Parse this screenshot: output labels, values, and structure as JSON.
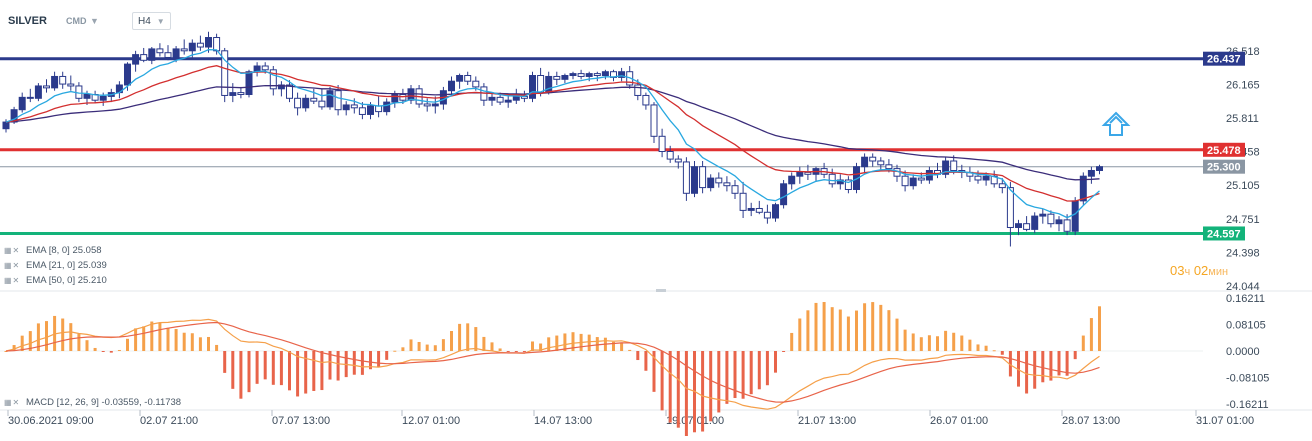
{
  "header": {
    "symbol": "SILVER",
    "exchange": "CMD",
    "caret": "▼",
    "timeframe": "H4",
    "timeframe_caret": "▼"
  },
  "indicators": {
    "ema8": "EMA [8, 0] 25.058",
    "ema21": "EMA [21, 0] 25.039",
    "ema50": "EMA [50, 0] 25.210",
    "macd": "MACD [12, 26, 9] -0.03559, -0.11738"
  },
  "timer": {
    "hours": "03",
    "hours_unit": "ч",
    "minutes": "02",
    "minutes_unit": "мин"
  },
  "colors": {
    "candle_up": "#2b3a8c",
    "candle_down": "#ffffff",
    "ema8": "#29a8e0",
    "ema21": "#d32f2f",
    "ema50": "#3b2d7a",
    "resistance_high": "#2b3a8c",
    "resistance_mid": "#e03131",
    "support": "#13b37a",
    "current_price": "#8a96a3",
    "macd_hist_up": "#f5a04a",
    "macd_hist_down": "#e8644a",
    "macd_line": "#f5a04a",
    "signal_line": "#e8644a",
    "arrow": "#3ba7e8"
  },
  "chart_data": {
    "type": "candlestick",
    "symbol": "SILVER",
    "timeframe": "H4",
    "price_axis": {
      "ticks": [
        "26.518",
        "26.165",
        "25.811",
        "25.458",
        "25.105",
        "24.751",
        "24.398",
        "24.044"
      ],
      "range": [
        24.044,
        26.518
      ]
    },
    "x_axis": {
      "ticks": [
        "30.06.2021  09:00",
        "02.07  21:00",
        "07.07  13:00",
        "12.07  01:00",
        "14.07  13:00",
        "19.07  01:00",
        "21.07  13:00",
        "26.07  01:00",
        "28.07  13:00",
        "31.07  01:00"
      ]
    },
    "levels": [
      {
        "name": "resistance-high",
        "value": 26.437,
        "label": "26.437",
        "color": "#2b3a8c"
      },
      {
        "name": "resistance-mid",
        "value": 25.478,
        "label": "25.478",
        "color": "#e03131"
      },
      {
        "name": "current-price",
        "value": 25.3,
        "label": "25.300",
        "color": "#8a96a3"
      },
      {
        "name": "support",
        "value": 24.597,
        "label": "24.597",
        "color": "#13b37a"
      }
    ],
    "candles": [
      {
        "o": 25.7,
        "h": 25.8,
        "l": 25.66,
        "c": 25.77
      },
      {
        "o": 25.77,
        "h": 25.93,
        "l": 25.75,
        "c": 25.9
      },
      {
        "o": 25.9,
        "h": 26.08,
        "l": 25.87,
        "c": 26.03
      },
      {
        "o": 26.03,
        "h": 26.12,
        "l": 25.98,
        "c": 26.02
      },
      {
        "o": 26.02,
        "h": 26.18,
        "l": 25.99,
        "c": 26.15
      },
      {
        "o": 26.15,
        "h": 26.22,
        "l": 26.08,
        "c": 26.13
      },
      {
        "o": 26.13,
        "h": 26.3,
        "l": 26.1,
        "c": 26.25
      },
      {
        "o": 26.25,
        "h": 26.3,
        "l": 26.12,
        "c": 26.17
      },
      {
        "o": 26.17,
        "h": 26.26,
        "l": 26.1,
        "c": 26.15
      },
      {
        "o": 26.15,
        "h": 26.19,
        "l": 25.98,
        "c": 26.02
      },
      {
        "o": 26.02,
        "h": 26.1,
        "l": 25.95,
        "c": 26.06
      },
      {
        "o": 26.06,
        "h": 26.1,
        "l": 25.97,
        "c": 26.0
      },
      {
        "o": 26.0,
        "h": 26.08,
        "l": 25.94,
        "c": 26.04
      },
      {
        "o": 26.04,
        "h": 26.12,
        "l": 25.98,
        "c": 26.08
      },
      {
        "o": 26.08,
        "h": 26.2,
        "l": 26.02,
        "c": 26.16
      },
      {
        "o": 26.16,
        "h": 26.4,
        "l": 26.1,
        "c": 26.38
      },
      {
        "o": 26.38,
        "h": 26.52,
        "l": 26.3,
        "c": 26.48
      },
      {
        "o": 26.48,
        "h": 26.55,
        "l": 26.4,
        "c": 26.42
      },
      {
        "o": 26.42,
        "h": 26.56,
        "l": 26.38,
        "c": 26.54
      },
      {
        "o": 26.54,
        "h": 26.6,
        "l": 26.46,
        "c": 26.5
      },
      {
        "o": 26.5,
        "h": 26.58,
        "l": 26.42,
        "c": 26.45
      },
      {
        "o": 26.45,
        "h": 26.57,
        "l": 26.4,
        "c": 26.54
      },
      {
        "o": 26.54,
        "h": 26.64,
        "l": 26.48,
        "c": 26.52
      },
      {
        "o": 26.52,
        "h": 26.64,
        "l": 26.45,
        "c": 26.6
      },
      {
        "o": 26.6,
        "h": 26.68,
        "l": 26.52,
        "c": 26.56
      },
      {
        "o": 26.56,
        "h": 26.72,
        "l": 26.5,
        "c": 26.66
      },
      {
        "o": 26.66,
        "h": 26.7,
        "l": 26.48,
        "c": 26.52
      },
      {
        "o": 26.52,
        "h": 26.55,
        "l": 25.98,
        "c": 26.05
      },
      {
        "o": 26.05,
        "h": 26.18,
        "l": 25.98,
        "c": 26.08
      },
      {
        "o": 26.08,
        "h": 26.14,
        "l": 26.02,
        "c": 26.06
      },
      {
        "o": 26.06,
        "h": 26.32,
        "l": 26.03,
        "c": 26.3
      },
      {
        "o": 26.3,
        "h": 26.4,
        "l": 26.25,
        "c": 26.36
      },
      {
        "o": 26.36,
        "h": 26.4,
        "l": 26.28,
        "c": 26.32
      },
      {
        "o": 26.32,
        "h": 26.36,
        "l": 26.05,
        "c": 26.12
      },
      {
        "o": 26.12,
        "h": 26.2,
        "l": 26.04,
        "c": 26.16
      },
      {
        "o": 26.16,
        "h": 26.21,
        "l": 25.98,
        "c": 26.02
      },
      {
        "o": 26.02,
        "h": 26.08,
        "l": 25.84,
        "c": 25.92
      },
      {
        "o": 25.92,
        "h": 26.06,
        "l": 25.88,
        "c": 26.02
      },
      {
        "o": 26.02,
        "h": 26.12,
        "l": 25.96,
        "c": 25.99
      },
      {
        "o": 25.99,
        "h": 26.12,
        "l": 25.9,
        "c": 25.93
      },
      {
        "o": 25.93,
        "h": 26.14,
        "l": 25.9,
        "c": 26.1
      },
      {
        "o": 26.1,
        "h": 26.16,
        "l": 25.84,
        "c": 25.9
      },
      {
        "o": 25.9,
        "h": 25.99,
        "l": 25.84,
        "c": 25.95
      },
      {
        "o": 25.95,
        "h": 26.02,
        "l": 25.86,
        "c": 25.92
      },
      {
        "o": 25.92,
        "h": 25.98,
        "l": 25.8,
        "c": 25.85
      },
      {
        "o": 25.85,
        "h": 25.98,
        "l": 25.8,
        "c": 25.94
      },
      {
        "o": 25.94,
        "h": 26.04,
        "l": 25.82,
        "c": 25.88
      },
      {
        "o": 25.88,
        "h": 26.02,
        "l": 25.84,
        "c": 25.98
      },
      {
        "o": 25.98,
        "h": 26.1,
        "l": 25.92,
        "c": 26.06
      },
      {
        "o": 26.06,
        "h": 26.12,
        "l": 25.96,
        "c": 26.0
      },
      {
        "o": 26.0,
        "h": 26.16,
        "l": 25.96,
        "c": 26.12
      },
      {
        "o": 26.12,
        "h": 26.16,
        "l": 25.92,
        "c": 25.96
      },
      {
        "o": 25.96,
        "h": 26.02,
        "l": 25.88,
        "c": 25.94
      },
      {
        "o": 25.94,
        "h": 26.04,
        "l": 25.86,
        "c": 25.96
      },
      {
        "o": 25.96,
        "h": 26.14,
        "l": 25.9,
        "c": 26.1
      },
      {
        "o": 26.1,
        "h": 26.25,
        "l": 26.05,
        "c": 26.2
      },
      {
        "o": 26.2,
        "h": 26.28,
        "l": 26.12,
        "c": 26.26
      },
      {
        "o": 26.26,
        "h": 26.3,
        "l": 26.16,
        "c": 26.2
      },
      {
        "o": 26.2,
        "h": 26.25,
        "l": 26.1,
        "c": 26.14
      },
      {
        "o": 26.14,
        "h": 26.18,
        "l": 25.94,
        "c": 26.0
      },
      {
        "o": 26.0,
        "h": 26.08,
        "l": 25.94,
        "c": 26.03
      },
      {
        "o": 26.03,
        "h": 26.08,
        "l": 25.95,
        "c": 25.98
      },
      {
        "o": 25.98,
        "h": 26.04,
        "l": 25.92,
        "c": 26.0
      },
      {
        "o": 26.0,
        "h": 26.12,
        "l": 25.96,
        "c": 26.04
      },
      {
        "o": 26.04,
        "h": 26.1,
        "l": 25.98,
        "c": 26.02
      },
      {
        "o": 26.02,
        "h": 26.3,
        "l": 25.98,
        "c": 26.26
      },
      {
        "o": 26.26,
        "h": 26.34,
        "l": 26.04,
        "c": 26.08
      },
      {
        "o": 26.08,
        "h": 26.3,
        "l": 26.06,
        "c": 26.25
      },
      {
        "o": 26.25,
        "h": 26.3,
        "l": 26.16,
        "c": 26.22
      },
      {
        "o": 26.22,
        "h": 26.28,
        "l": 26.18,
        "c": 26.26
      },
      {
        "o": 26.26,
        "h": 26.3,
        "l": 26.22,
        "c": 26.28
      },
      {
        "o": 26.28,
        "h": 26.32,
        "l": 26.22,
        "c": 26.25
      },
      {
        "o": 26.25,
        "h": 26.3,
        "l": 26.2,
        "c": 26.28
      },
      {
        "o": 26.28,
        "h": 26.3,
        "l": 26.2,
        "c": 26.26
      },
      {
        "o": 26.26,
        "h": 26.32,
        "l": 26.22,
        "c": 26.3
      },
      {
        "o": 26.3,
        "h": 26.32,
        "l": 26.2,
        "c": 26.24
      },
      {
        "o": 26.24,
        "h": 26.34,
        "l": 26.2,
        "c": 26.3
      },
      {
        "o": 26.3,
        "h": 26.36,
        "l": 26.12,
        "c": 26.16
      },
      {
        "o": 26.16,
        "h": 26.22,
        "l": 26.0,
        "c": 26.05
      },
      {
        "o": 26.05,
        "h": 26.08,
        "l": 25.9,
        "c": 25.95
      },
      {
        "o": 25.95,
        "h": 25.98,
        "l": 25.55,
        "c": 25.62
      },
      {
        "o": 25.62,
        "h": 25.7,
        "l": 25.4,
        "c": 25.46
      },
      {
        "o": 25.46,
        "h": 25.52,
        "l": 25.34,
        "c": 25.38
      },
      {
        "o": 25.38,
        "h": 25.42,
        "l": 25.28,
        "c": 25.35
      },
      {
        "o": 25.35,
        "h": 25.4,
        "l": 24.94,
        "c": 25.02
      },
      {
        "o": 25.02,
        "h": 25.36,
        "l": 24.98,
        "c": 25.3
      },
      {
        "o": 25.3,
        "h": 25.36,
        "l": 25.02,
        "c": 25.08
      },
      {
        "o": 25.08,
        "h": 25.22,
        "l": 25.04,
        "c": 25.18
      },
      {
        "o": 25.18,
        "h": 25.24,
        "l": 25.08,
        "c": 25.13
      },
      {
        "o": 25.13,
        "h": 25.2,
        "l": 25.04,
        "c": 25.1
      },
      {
        "o": 25.1,
        "h": 25.16,
        "l": 24.96,
        "c": 25.02
      },
      {
        "o": 25.02,
        "h": 25.14,
        "l": 24.76,
        "c": 24.84
      },
      {
        "o": 24.84,
        "h": 24.92,
        "l": 24.78,
        "c": 24.86
      },
      {
        "o": 24.86,
        "h": 24.94,
        "l": 24.8,
        "c": 24.82
      },
      {
        "o": 24.82,
        "h": 24.9,
        "l": 24.7,
        "c": 24.76
      },
      {
        "o": 24.76,
        "h": 24.92,
        "l": 24.72,
        "c": 24.9
      },
      {
        "o": 24.9,
        "h": 25.16,
        "l": 24.86,
        "c": 25.12
      },
      {
        "o": 25.12,
        "h": 25.24,
        "l": 25.06,
        "c": 25.2
      },
      {
        "o": 25.2,
        "h": 25.3,
        "l": 25.12,
        "c": 25.24
      },
      {
        "o": 25.24,
        "h": 25.32,
        "l": 25.16,
        "c": 25.22
      },
      {
        "o": 25.22,
        "h": 25.3,
        "l": 25.14,
        "c": 25.28
      },
      {
        "o": 25.28,
        "h": 25.34,
        "l": 25.18,
        "c": 25.22
      },
      {
        "o": 25.22,
        "h": 25.28,
        "l": 25.08,
        "c": 25.12
      },
      {
        "o": 25.12,
        "h": 25.22,
        "l": 25.06,
        "c": 25.16
      },
      {
        "o": 25.16,
        "h": 25.2,
        "l": 25.02,
        "c": 25.06
      },
      {
        "o": 25.06,
        "h": 25.34,
        "l": 25.02,
        "c": 25.3
      },
      {
        "o": 25.3,
        "h": 25.44,
        "l": 25.24,
        "c": 25.4
      },
      {
        "o": 25.4,
        "h": 25.44,
        "l": 25.3,
        "c": 25.36
      },
      {
        "o": 25.36,
        "h": 25.4,
        "l": 25.26,
        "c": 25.32
      },
      {
        "o": 25.32,
        "h": 25.38,
        "l": 25.24,
        "c": 25.28
      },
      {
        "o": 25.28,
        "h": 25.32,
        "l": 25.14,
        "c": 25.2
      },
      {
        "o": 25.2,
        "h": 25.26,
        "l": 25.04,
        "c": 25.1
      },
      {
        "o": 25.1,
        "h": 25.22,
        "l": 25.06,
        "c": 25.18
      },
      {
        "o": 25.18,
        "h": 25.24,
        "l": 25.12,
        "c": 25.16
      },
      {
        "o": 25.16,
        "h": 25.3,
        "l": 25.12,
        "c": 25.26
      },
      {
        "o": 25.26,
        "h": 25.34,
        "l": 25.18,
        "c": 25.22
      },
      {
        "o": 25.22,
        "h": 25.4,
        "l": 25.18,
        "c": 25.36
      },
      {
        "o": 25.36,
        "h": 25.42,
        "l": 25.22,
        "c": 25.26
      },
      {
        "o": 25.26,
        "h": 25.32,
        "l": 25.18,
        "c": 25.24
      },
      {
        "o": 25.24,
        "h": 25.3,
        "l": 25.14,
        "c": 25.2
      },
      {
        "o": 25.2,
        "h": 25.26,
        "l": 25.12,
        "c": 25.16
      },
      {
        "o": 25.16,
        "h": 25.24,
        "l": 25.1,
        "c": 25.2
      },
      {
        "o": 25.2,
        "h": 25.26,
        "l": 25.08,
        "c": 25.12
      },
      {
        "o": 25.12,
        "h": 25.18,
        "l": 25.02,
        "c": 25.08
      },
      {
        "o": 25.08,
        "h": 25.14,
        "l": 24.46,
        "c": 24.66
      },
      {
        "o": 24.66,
        "h": 24.74,
        "l": 24.58,
        "c": 24.7
      },
      {
        "o": 24.7,
        "h": 24.78,
        "l": 24.62,
        "c": 24.64
      },
      {
        "o": 24.64,
        "h": 24.82,
        "l": 24.6,
        "c": 24.78
      },
      {
        "o": 24.78,
        "h": 24.86,
        "l": 24.7,
        "c": 24.8
      },
      {
        "o": 24.8,
        "h": 24.84,
        "l": 24.66,
        "c": 24.7
      },
      {
        "o": 24.7,
        "h": 24.78,
        "l": 24.62,
        "c": 24.74
      },
      {
        "o": 24.74,
        "h": 24.8,
        "l": 24.58,
        "c": 24.62
      },
      {
        "o": 24.62,
        "h": 24.98,
        "l": 24.58,
        "c": 24.94
      },
      {
        "o": 24.94,
        "h": 25.24,
        "l": 24.9,
        "c": 25.2
      },
      {
        "o": 25.2,
        "h": 25.3,
        "l": 25.12,
        "c": 25.26
      },
      {
        "o": 25.26,
        "h": 25.32,
        "l": 25.22,
        "c": 25.3
      }
    ],
    "series": [
      {
        "name": "EMA [8, 0]",
        "last": 25.058
      },
      {
        "name": "EMA [21, 0]",
        "last": 25.039
      },
      {
        "name": "EMA [50, 0]",
        "last": 25.21
      }
    ],
    "macd": {
      "params": "[12, 26, 9]",
      "macd_last": -0.03559,
      "signal_last": -0.11738,
      "axis_ticks": [
        "0.16211",
        "0.08105",
        "0.0000",
        "-0.08105",
        "-0.16211"
      ],
      "range": [
        -0.16211,
        0.16211
      ]
    }
  }
}
